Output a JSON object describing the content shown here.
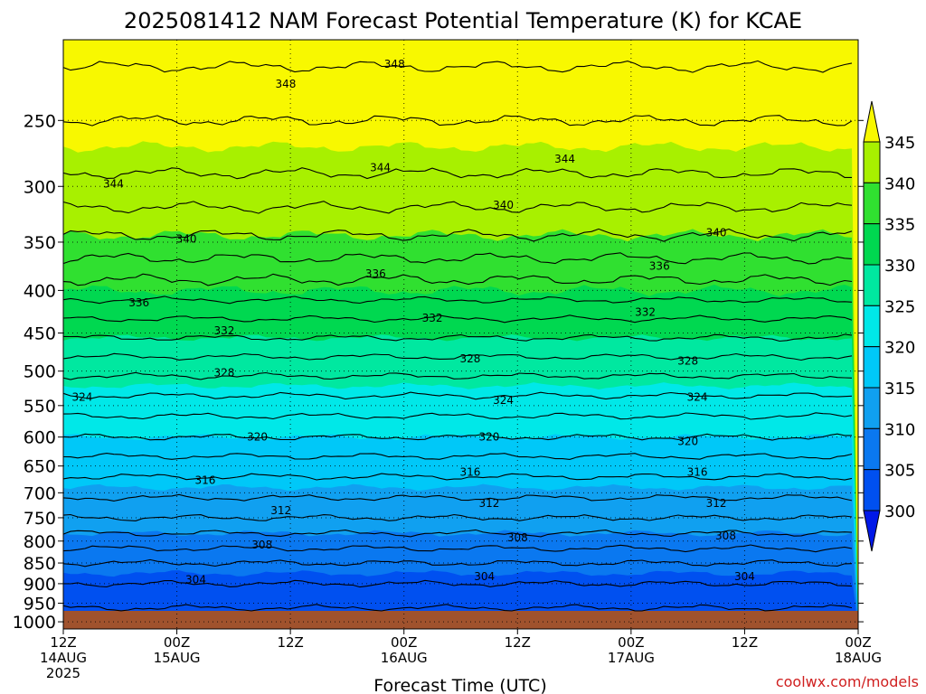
{
  "chart_data": {
    "type": "heatmap",
    "title": "2025081412 NAM Forecast Potential Temperature (K) for KCAE",
    "xlabel": "Forecast Time (UTC)",
    "ylabel": "",
    "credit": "coolwx.com/models",
    "x_ticks": [
      {
        "hour": 0,
        "line1": "12Z",
        "line2": "14AUG",
        "line3": "2025"
      },
      {
        "hour": 12,
        "line1": "00Z",
        "line2": "15AUG",
        "line3": ""
      },
      {
        "hour": 24,
        "line1": "12Z",
        "line2": "",
        "line3": ""
      },
      {
        "hour": 36,
        "line1": "00Z",
        "line2": "16AUG",
        "line3": ""
      },
      {
        "hour": 48,
        "line1": "12Z",
        "line2": "",
        "line3": ""
      },
      {
        "hour": 60,
        "line1": "00Z",
        "line2": "17AUG",
        "line3": ""
      },
      {
        "hour": 72,
        "line1": "12Z",
        "line2": "",
        "line3": ""
      },
      {
        "hour": 84,
        "line1": "00Z",
        "line2": "18AUG",
        "line3": ""
      }
    ],
    "xlim": [
      0,
      84
    ],
    "y_ticks": [
      250,
      300,
      350,
      400,
      450,
      500,
      550,
      600,
      650,
      700,
      750,
      800,
      850,
      900,
      950,
      1000
    ],
    "ylim": [
      200,
      1020
    ],
    "y_scale": "log-pressure",
    "grid": true,
    "colorbar": {
      "labels": [
        "300",
        "305",
        "310",
        "315",
        "320",
        "325",
        "330",
        "335",
        "340",
        "345"
      ],
      "thresholds": [
        300,
        305,
        310,
        315,
        320,
        325,
        330,
        335,
        340,
        345
      ],
      "colors": [
        "#0018e8",
        "#0050f0",
        "#0a78f0",
        "#10a0f0",
        "#00c8f8",
        "#00e8e8",
        "#00e8a0",
        "#00d850",
        "#30e030",
        "#a8f000",
        "#f8f800"
      ]
    },
    "profile": [
      {
        "p": 1000,
        "theta": 300.5
      },
      {
        "p": 950,
        "theta": 302.5
      },
      {
        "p": 900,
        "theta": 304
      },
      {
        "p": 850,
        "theta": 306
      },
      {
        "p": 800,
        "theta": 309
      },
      {
        "p": 750,
        "theta": 312
      },
      {
        "p": 700,
        "theta": 314.5
      },
      {
        "p": 650,
        "theta": 317
      },
      {
        "p": 600,
        "theta": 320
      },
      {
        "p": 550,
        "theta": 323
      },
      {
        "p": 500,
        "theta": 326.5
      },
      {
        "p": 450,
        "theta": 330.5
      },
      {
        "p": 400,
        "theta": 335
      },
      {
        "p": 350,
        "theta": 339.5
      },
      {
        "p": 300,
        "theta": 343.5
      },
      {
        "p": 250,
        "theta": 346
      },
      {
        "p": 200,
        "theta": 349
      }
    ],
    "contour_labels": [
      {
        "value": "348",
        "hour": 23.5,
        "p": 226
      },
      {
        "value": "348",
        "hour": 35.0,
        "p": 214
      },
      {
        "value": "344",
        "hour": 33.5,
        "p": 285
      },
      {
        "value": "344",
        "hour": 53.0,
        "p": 278
      },
      {
        "value": "344",
        "hour": 5.3,
        "p": 298
      },
      {
        "value": "340",
        "hour": 46.5,
        "p": 316
      },
      {
        "value": "340",
        "hour": 69.0,
        "p": 341
      },
      {
        "value": "340",
        "hour": 13.0,
        "p": 347
      },
      {
        "value": "336",
        "hour": 33.0,
        "p": 382
      },
      {
        "value": "336",
        "hour": 63.0,
        "p": 374
      },
      {
        "value": "336",
        "hour": 8.0,
        "p": 414
      },
      {
        "value": "332",
        "hour": 39.0,
        "p": 432
      },
      {
        "value": "332",
        "hour": 61.5,
        "p": 425
      },
      {
        "value": "332",
        "hour": 17.0,
        "p": 447
      },
      {
        "value": "328",
        "hour": 43.0,
        "p": 483
      },
      {
        "value": "328",
        "hour": 66.0,
        "p": 486
      },
      {
        "value": "328",
        "hour": 17.0,
        "p": 502
      },
      {
        "value": "324",
        "hour": 2.0,
        "p": 537
      },
      {
        "value": "324",
        "hour": 46.5,
        "p": 542
      },
      {
        "value": "324",
        "hour": 67.0,
        "p": 537
      },
      {
        "value": "320",
        "hour": 20.5,
        "p": 600
      },
      {
        "value": "320",
        "hour": 45.0,
        "p": 600
      },
      {
        "value": "320",
        "hour": 66.0,
        "p": 607
      },
      {
        "value": "316",
        "hour": 15.0,
        "p": 676
      },
      {
        "value": "316",
        "hour": 43.0,
        "p": 661
      },
      {
        "value": "316",
        "hour": 67.0,
        "p": 661
      },
      {
        "value": "312",
        "hour": 23.0,
        "p": 735
      },
      {
        "value": "312",
        "hour": 45.0,
        "p": 721
      },
      {
        "value": "312",
        "hour": 69.0,
        "p": 721
      },
      {
        "value": "308",
        "hour": 21.0,
        "p": 808
      },
      {
        "value": "308",
        "hour": 48.0,
        "p": 792
      },
      {
        "value": "308",
        "hour": 70.0,
        "p": 789
      },
      {
        "value": "304",
        "hour": 14.0,
        "p": 890
      },
      {
        "value": "304",
        "hour": 44.5,
        "p": 882
      },
      {
        "value": "304",
        "hour": 72.0,
        "p": 882
      }
    ]
  }
}
